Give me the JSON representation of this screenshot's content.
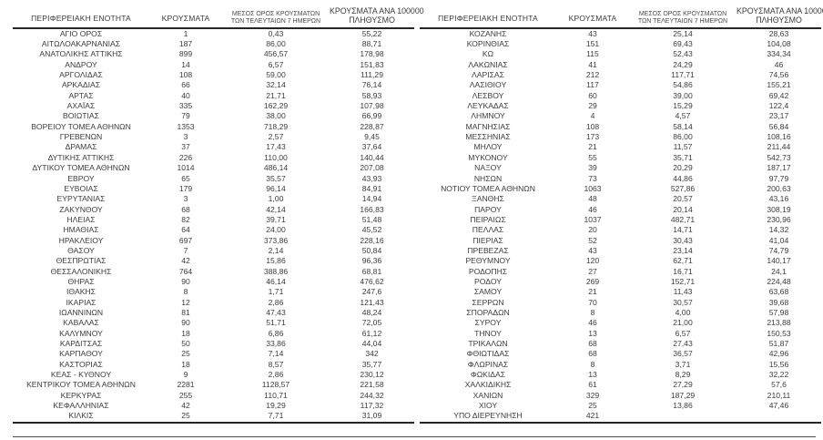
{
  "columns": {
    "region": "ΠΕΡΙΦΕΡΕΙΑΚΗ ΕΝΟΤΗΤΑ",
    "cases": "ΚΡΟΥΣΜΑΤΑ",
    "avg7_line1": "ΜΕΣΟΣ ΟΡΟΣ ΚΡΟΥΣΜΑΤΩΝ",
    "avg7_line2": "ΤΩΝ ΤΕΛΕΥΤΑΙΩΝ 7 ΗΜΕΡΩΝ",
    "per100k_line1": "ΚΡΟΥΣΜΑΤΑ ΑΝΑ 100000",
    "per100k_line2": "ΠΛΗΘΥΣΜΟ"
  },
  "text_color": "#3c3c3c",
  "border_color": "#262626",
  "tables": [
    {
      "rows": [
        [
          "ΑΓΙΟ ΟΡΟΣ",
          "1",
          "0,43",
          "55,22"
        ],
        [
          "ΑΙΤΩΛΟΑΚΑΡΝΑΝΙΑΣ",
          "187",
          "86,00",
          "88,71"
        ],
        [
          "ΑΝΑΤΟΛΙΚΗΣ ΑΤΤΙΚΗΣ",
          "899",
          "456,57",
          "178,98"
        ],
        [
          "ΑΝΔΡΟΥ",
          "14",
          "6,57",
          "151,83"
        ],
        [
          "ΑΡΓΟΛΙΔΑΣ",
          "108",
          "59,00",
          "111,29"
        ],
        [
          "ΑΡΚΑΔΙΑΣ",
          "66",
          "32,14",
          "76,14"
        ],
        [
          "ΑΡΤΑΣ",
          "40",
          "21,71",
          "58,93"
        ],
        [
          "ΑΧΑΪΑΣ",
          "335",
          "162,29",
          "107,98"
        ],
        [
          "ΒΟΙΩΤΙΑΣ",
          "79",
          "38,00",
          "66,99"
        ],
        [
          "ΒΟΡΕΙΟΥ ΤΟΜΕΑ ΑΘΗΝΩΝ",
          "1353",
          "718,29",
          "228,87"
        ],
        [
          "ΓΡΕΒΕΝΩΝ",
          "3",
          "2,57",
          "9,45"
        ],
        [
          "ΔΡΑΜΑΣ",
          "37",
          "17,43",
          "37,64"
        ],
        [
          "ΔΥΤΙΚΗΣ ΑΤΤΙΚΗΣ",
          "226",
          "110,00",
          "140,44"
        ],
        [
          "ΔΥΤΙΚΟΥ ΤΟΜΕΑ ΑΘΗΝΩΝ",
          "1014",
          "486,14",
          "207,08"
        ],
        [
          "ΕΒΡΟΥ",
          "65",
          "35,57",
          "43,93"
        ],
        [
          "ΕΥΒΟΙΑΣ",
          "179",
          "96,14",
          "84,91"
        ],
        [
          "ΕΥΡΥΤΑΝΙΑΣ",
          "3",
          "1,00",
          "14,94"
        ],
        [
          "ΖΑΚΥΝΘΟΥ",
          "68",
          "42,14",
          "166,83"
        ],
        [
          "ΗΛΕΙΑΣ",
          "82",
          "39,71",
          "51,48"
        ],
        [
          "ΗΜΑΘΙΑΣ",
          "64",
          "24,00",
          "45,52"
        ],
        [
          "ΗΡΑΚΛΕΙΟΥ",
          "697",
          "373,86",
          "228,16"
        ],
        [
          "ΘΑΣΟΥ",
          "7",
          "2,14",
          "50,84"
        ],
        [
          "ΘΕΣΠΡΩΤΙΑΣ",
          "42",
          "15,86",
          "96,36"
        ],
        [
          "ΘΕΣΣΑΛΟΝΙΚΗΣ",
          "764",
          "388,86",
          "68,81"
        ],
        [
          "ΘΗΡΑΣ",
          "90",
          "46,14",
          "476,62"
        ],
        [
          "ΙΘΑΚΗΣ",
          "8",
          "1,71",
          "247,6"
        ],
        [
          "ΙΚΑΡΙΑΣ",
          "12",
          "2,86",
          "121,43"
        ],
        [
          "ΙΩΑΝΝΙΝΩΝ",
          "81",
          "47,43",
          "48,24"
        ],
        [
          "ΚΑΒΑΛΑΣ",
          "90",
          "51,71",
          "72,05"
        ],
        [
          "ΚΑΛΥΜΝΟΥ",
          "18",
          "6,86",
          "61,12"
        ],
        [
          "ΚΑΡΔΙΤΣΑΣ",
          "50",
          "33,86",
          "44,04"
        ],
        [
          "ΚΑΡΠΑΘΟΥ",
          "25",
          "7,14",
          "342"
        ],
        [
          "ΚΑΣΤΟΡΙΑΣ",
          "18",
          "8,57",
          "35,77"
        ],
        [
          "ΚΕΑΣ - ΚΥΘΝΟΥ",
          "9",
          "2,86",
          "230,12"
        ],
        [
          "ΚΕΝΤΡΙΚΟΥ ΤΟΜΕΑ ΑΘΗΝΩΝ",
          "2281",
          "1128,57",
          "221,58"
        ],
        [
          "ΚΕΡΚΥΡΑΣ",
          "255",
          "110,71",
          "244,32"
        ],
        [
          "ΚΕΦΑΛΛΗΝΙΑΣ",
          "42",
          "19,29",
          "117,32"
        ],
        [
          "ΚΙΛΚΙΣ",
          "25",
          "7,71",
          "31,09"
        ]
      ]
    },
    {
      "rows": [
        [
          "ΚΟΖΑΝΗΣ",
          "43",
          "25,14",
          "28,63"
        ],
        [
          "ΚΟΡΙΝΘΙΑΣ",
          "151",
          "69,43",
          "104,08"
        ],
        [
          "ΚΩ",
          "115",
          "52,43",
          "334,34"
        ],
        [
          "ΛΑΚΩΝΙΑΣ",
          "41",
          "24,29",
          "46"
        ],
        [
          "ΛΑΡΙΣΑΣ",
          "212",
          "117,71",
          "74,56"
        ],
        [
          "ΛΑΣΙΘΙΟΥ",
          "117",
          "54,86",
          "155,21"
        ],
        [
          "ΛΕΣΒΟΥ",
          "60",
          "39,00",
          "69,42"
        ],
        [
          "ΛΕΥΚΑΔΑΣ",
          "29",
          "15,29",
          "122,4"
        ],
        [
          "ΛΗΜΝΟΥ",
          "4",
          "4,57",
          "23,17"
        ],
        [
          "ΜΑΓΝΗΣΙΑΣ",
          "108",
          "58,14",
          "56,84"
        ],
        [
          "ΜΕΣΣΗΝΙΑΣ",
          "173",
          "86,00",
          "108,16"
        ],
        [
          "ΜΗΛΟΥ",
          "21",
          "11,57",
          "211,44"
        ],
        [
          "ΜΥΚΟΝΟΥ",
          "55",
          "35,71",
          "542,73"
        ],
        [
          "ΝΑΞΟΥ",
          "39",
          "20,29",
          "187,17"
        ],
        [
          "ΝΗΣΩΝ",
          "73",
          "44,86",
          "97,79"
        ],
        [
          "ΝΟΤΙΟΥ ΤΟΜΕΑ ΑΘΗΝΩΝ",
          "1063",
          "527,86",
          "200,63"
        ],
        [
          "ΞΑΝΘΗΣ",
          "48",
          "20,57",
          "43,16"
        ],
        [
          "ΠΑΡΟΥ",
          "46",
          "20,14",
          "308,19"
        ],
        [
          "ΠΕΙΡΑΙΩΣ",
          "1037",
          "482,71",
          "230,96"
        ],
        [
          "ΠΕΛΛΑΣ",
          "20",
          "14,71",
          "14,32"
        ],
        [
          "ΠΙΕΡΙΑΣ",
          "52",
          "30,43",
          "41,04"
        ],
        [
          "ΠΡΕΒΕΖΑΣ",
          "43",
          "23,14",
          "74,79"
        ],
        [
          "ΡΕΘΥΜΝΟΥ",
          "120",
          "62,71",
          "140,17"
        ],
        [
          "ΡΟΔΟΠΗΣ",
          "27",
          "16,71",
          "24,1"
        ],
        [
          "ΡΟΔΟΥ",
          "269",
          "152,71",
          "224,48"
        ],
        [
          "ΣΑΜΟΥ",
          "21",
          "11,43",
          "63,68"
        ],
        [
          "ΣΕΡΡΩΝ",
          "70",
          "30,57",
          "39,68"
        ],
        [
          "ΣΠΟΡΑΔΩΝ",
          "8",
          "4,00",
          "57,98"
        ],
        [
          "ΣΥΡΟΥ",
          "46",
          "21,00",
          "213,88"
        ],
        [
          "ΤΗΝΟΥ",
          "13",
          "6,57",
          "150,53"
        ],
        [
          "ΤΡΙΚΑΛΩΝ",
          "68",
          "27,43",
          "51,87"
        ],
        [
          "ΦΘΙΩΤΙΔΑΣ",
          "68",
          "36,57",
          "42,96"
        ],
        [
          "ΦΛΩΡΙΝΑΣ",
          "8",
          "3,71",
          "15,56"
        ],
        [
          "ΦΩΚΙΔΑΣ",
          "13",
          "8,29",
          "32,22"
        ],
        [
          "ΧΑΛΚΙΔΙΚΗΣ",
          "61",
          "27,29",
          "57,6"
        ],
        [
          "ΧΑΝΙΩΝ",
          "329",
          "187,29",
          "210,11"
        ],
        [
          "ΧΙΟΥ",
          "25",
          "13,86",
          "47,46"
        ],
        [
          "ΥΠΟ ΔΙΕΡΕΥΝΗΣΗ",
          "421",
          "",
          ""
        ]
      ]
    }
  ]
}
